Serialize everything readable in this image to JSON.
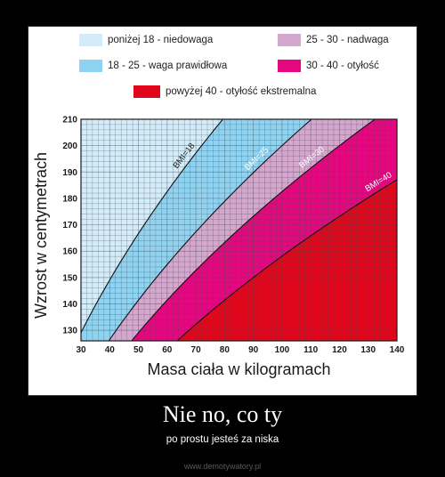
{
  "chart_data": {
    "type": "area",
    "xlabel": "Masa ciała w kilogramach",
    "ylabel": "Wzrost w centymetrach",
    "xlim": [
      30,
      140
    ],
    "ylim": [
      126,
      210
    ],
    "x_ticks": [
      30,
      40,
      50,
      60,
      70,
      80,
      90,
      100,
      110,
      120,
      130,
      140
    ],
    "y_ticks": [
      130,
      140,
      150,
      160,
      170,
      180,
      190,
      200,
      210
    ],
    "grid": true,
    "legend_placement": "top",
    "formula": "height_cm = 100 * sqrt(mass_kg / BMI)",
    "boundaries": [
      {
        "bmi": 18,
        "label": "BMI=18"
      },
      {
        "bmi": 25,
        "label": "BMI=25"
      },
      {
        "bmi": 30,
        "label": "BMI=30"
      },
      {
        "bmi": 40,
        "label": "BMI=40"
      }
    ],
    "series": [
      {
        "name": "poniżej 18  - niedowaga",
        "bmi_range": [
          0,
          18
        ],
        "color": "#d3ecf9"
      },
      {
        "name": "18 - 25 - waga prawidłowa",
        "bmi_range": [
          18,
          25
        ],
        "color": "#8fd3f2"
      },
      {
        "name": "25 - 30  - nadwaga",
        "bmi_range": [
          25,
          30
        ],
        "color": "#d4a7cf"
      },
      {
        "name": "30 - 40  - otyłość",
        "bmi_range": [
          30,
          40
        ],
        "color": "#e5077f"
      },
      {
        "name": "powyżej 40  - otyłość ekstremalna",
        "bmi_range": [
          40,
          100
        ],
        "color": "#e0061c"
      }
    ]
  },
  "caption": {
    "title": "Nie no, co ty",
    "subtitle": "po prostu jesteś za niska"
  },
  "watermark": "www.demotywatory.pl"
}
